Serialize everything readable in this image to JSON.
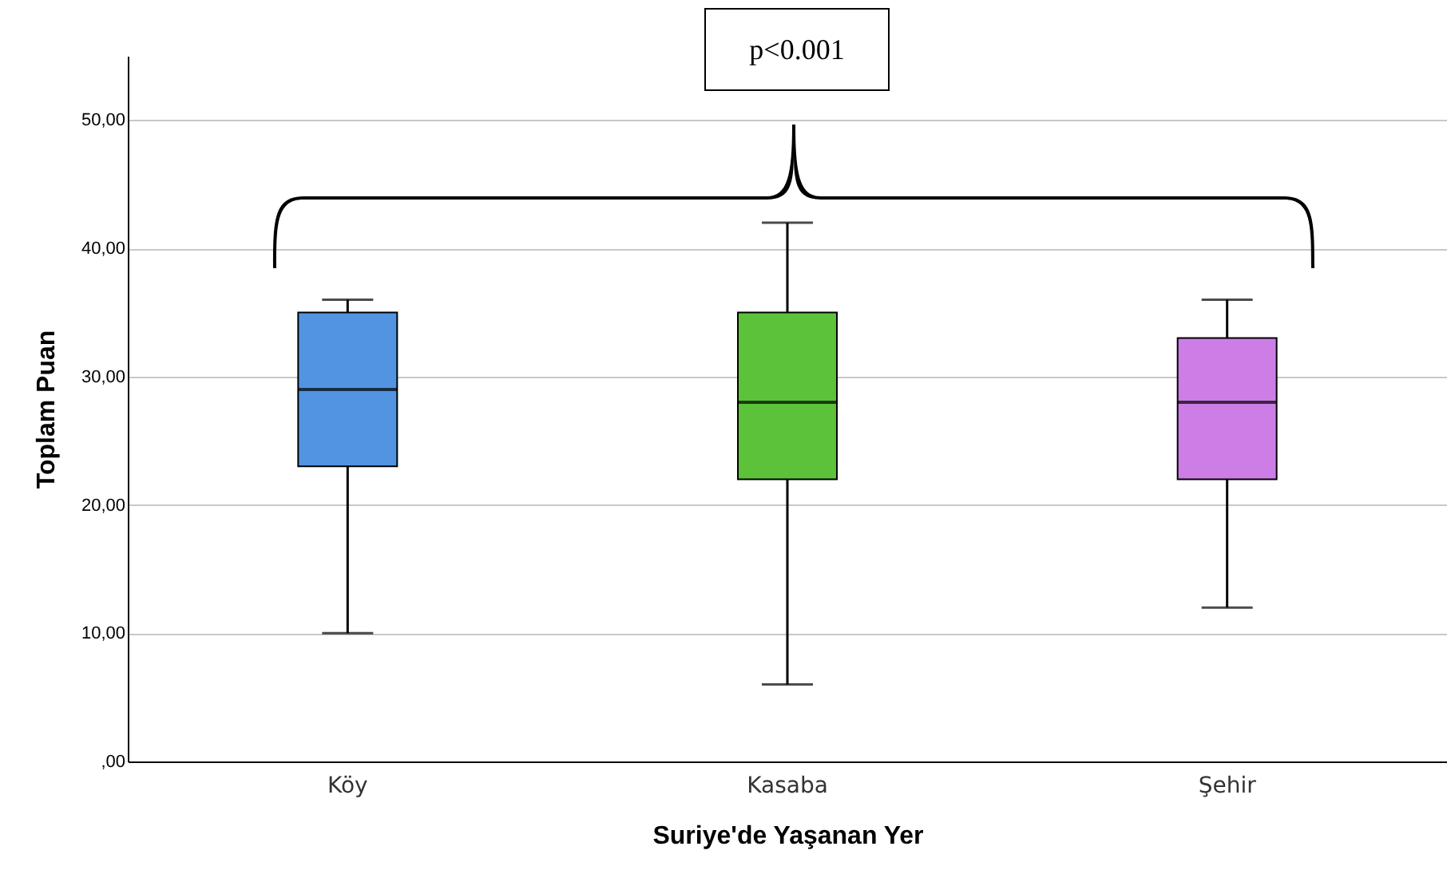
{
  "chart_data": {
    "type": "box",
    "xlabel": "Suriye'de Yaşanan Yer",
    "ylabel": "Toplam Puan",
    "categories": [
      "Köy",
      "Kasaba",
      "Şehir"
    ],
    "colors": [
      "#5294e2",
      "#5cc23a",
      "#cc7ee6"
    ],
    "boxes": [
      {
        "low": 10,
        "q1": 23,
        "median": 29,
        "q3": 35,
        "high": 36
      },
      {
        "low": 6,
        "q1": 22,
        "median": 28,
        "q3": 35,
        "high": 42
      },
      {
        "low": 12,
        "q1": 22,
        "median": 28,
        "q3": 33,
        "high": 36
      }
    ],
    "ylim": [
      0,
      55
    ],
    "yticks": [
      {
        "value": 0,
        "label": ",00"
      },
      {
        "value": 10,
        "label": "10,00"
      },
      {
        "value": 20,
        "label": "20,00"
      },
      {
        "value": 30,
        "label": "30,00"
      },
      {
        "value": 40,
        "label": "40,00"
      },
      {
        "value": 50,
        "label": "50,00"
      }
    ],
    "grid": "y",
    "annotations": [
      "p<0.001"
    ]
  }
}
